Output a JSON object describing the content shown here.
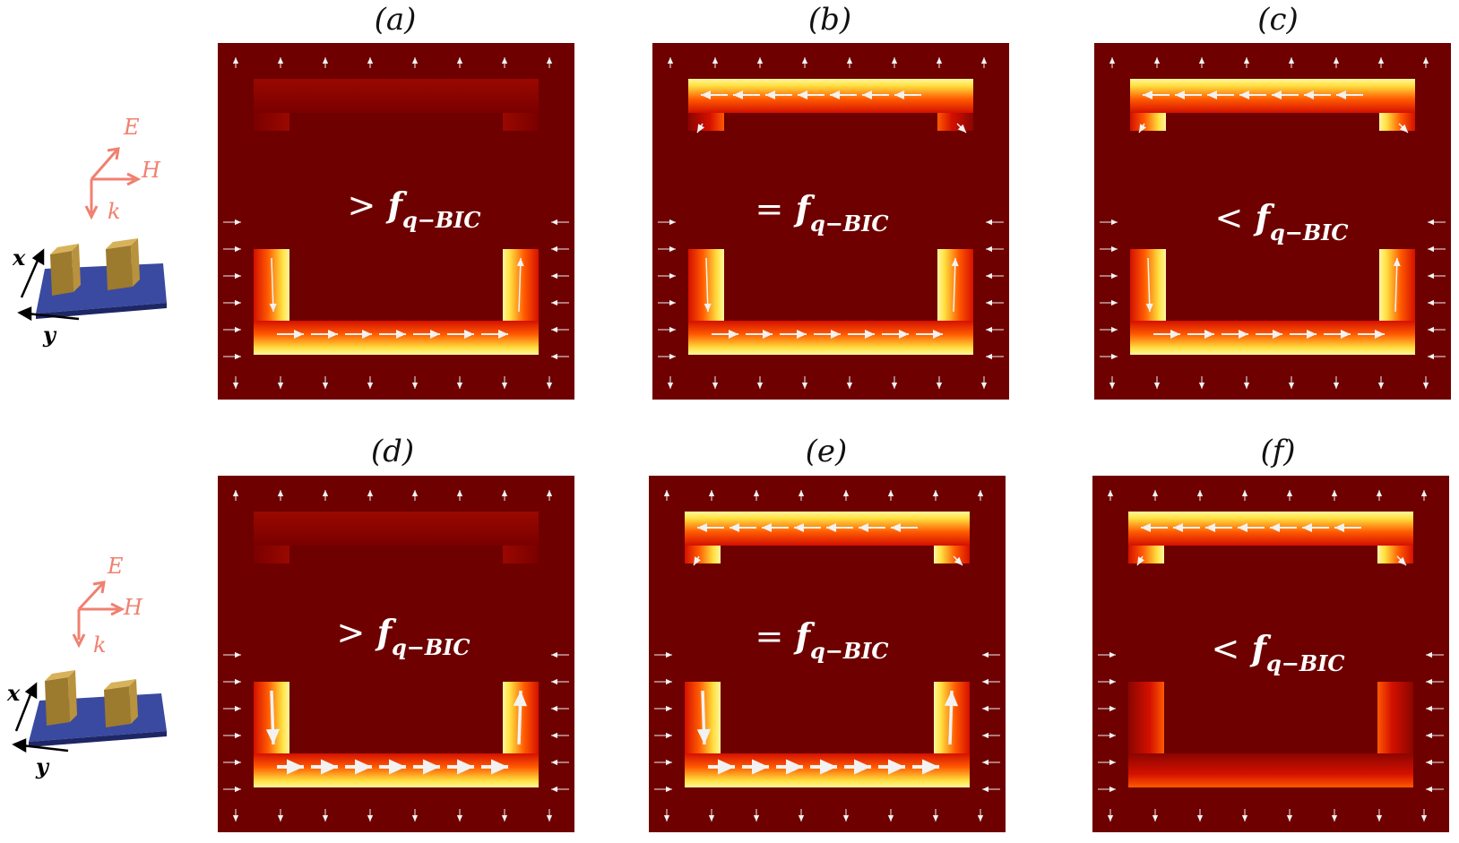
{
  "panels": [
    {
      "id": "a",
      "label": "(a)",
      "op": ">",
      "f": "f",
      "sub": "q−BIC",
      "mode": "top"
    },
    {
      "id": "b",
      "label": "(b)",
      "op": "=",
      "f": "f",
      "sub": "q−BIC",
      "mode": "top"
    },
    {
      "id": "c",
      "label": "(c)",
      "op": "<",
      "f": "f",
      "sub": "q−BIC",
      "mode": "top"
    },
    {
      "id": "d",
      "label": "(d)",
      "op": ">",
      "f": "f",
      "sub": "q−BIC",
      "mode": "bottom"
    },
    {
      "id": "e",
      "label": "(e)",
      "op": "=",
      "f": "f",
      "sub": "q−BIC",
      "mode": "bottom"
    },
    {
      "id": "f",
      "label": "(f)",
      "op": "<",
      "f": "f",
      "sub": "q−BIC",
      "mode": "bottom"
    }
  ],
  "diagrams": [
    {
      "E": "E",
      "H": "H",
      "k": "k",
      "x": "x",
      "y": "y"
    },
    {
      "E": "E",
      "H": "H",
      "k": "k",
      "x": "x",
      "y": "y"
    }
  ],
  "colors": {
    "background_field": "#6e0000",
    "glow_hot": "#ffe040",
    "glow_mid": "#ff5a00",
    "glow_red": "#d41000",
    "arrow": "#f2f2f2",
    "axis_labels_EHk": "#f08070",
    "substrate": "#3a4aa0",
    "resonator": "#b8923c"
  },
  "field_levels": {
    "a": {
      "top": 0.15,
      "bottom": 0.85
    },
    "b": {
      "top": 0.7,
      "bottom": 0.8
    },
    "c": {
      "top": 0.85,
      "bottom": 0.65
    },
    "d": {
      "top": 0.1,
      "bottom": 1.0
    },
    "e": {
      "top": 0.75,
      "bottom": 0.95
    },
    "f": {
      "top": 0.85,
      "bottom": 0.5
    }
  }
}
